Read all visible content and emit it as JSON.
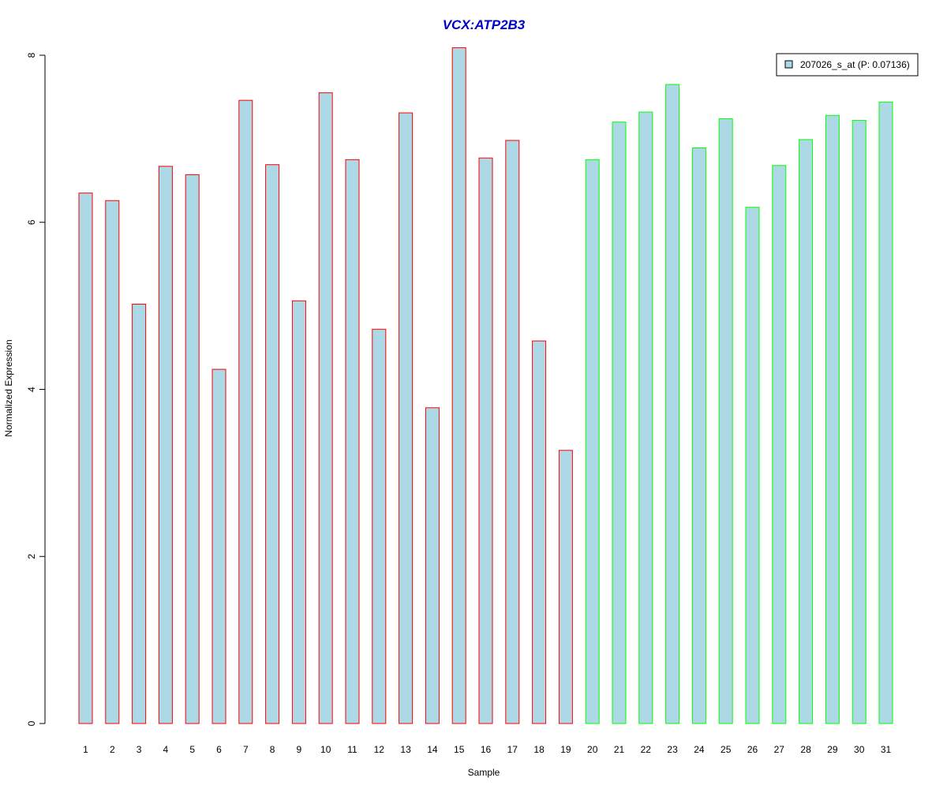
{
  "chart_data": {
    "type": "bar",
    "title": "VCX:ATP2B3",
    "xlabel": "Sample",
    "ylabel": "Normalized Expression",
    "ylim": [
      0,
      8.1
    ],
    "y_ticks": [
      0,
      2,
      4,
      6,
      8
    ],
    "grid": false,
    "legend": {
      "label": "207026_s_at (P: 0.07136)",
      "position": "top-right"
    },
    "categories": [
      "1",
      "2",
      "3",
      "4",
      "5",
      "6",
      "7",
      "8",
      "9",
      "10",
      "11",
      "12",
      "13",
      "14",
      "15",
      "16",
      "17",
      "18",
      "19",
      "20",
      "21",
      "22",
      "23",
      "24",
      "25",
      "26",
      "27",
      "28",
      "29",
      "30",
      "31"
    ],
    "values": [
      6.35,
      6.26,
      5.02,
      6.67,
      6.57,
      4.24,
      7.46,
      6.69,
      5.06,
      7.55,
      6.75,
      4.72,
      7.31,
      3.78,
      8.09,
      6.77,
      6.98,
      4.58,
      3.27,
      6.75,
      7.2,
      7.32,
      7.65,
      6.89,
      7.24,
      6.18,
      6.68,
      6.99,
      7.28,
      7.22,
      7.44
    ],
    "groups": [
      "red",
      "red",
      "red",
      "red",
      "red",
      "red",
      "red",
      "red",
      "red",
      "red",
      "red",
      "red",
      "red",
      "red",
      "red",
      "red",
      "red",
      "red",
      "red",
      "green",
      "green",
      "green",
      "green",
      "green",
      "green",
      "green",
      "green",
      "green",
      "green",
      "green",
      "green"
    ],
    "colors": {
      "bar_fill": "#add8e6",
      "group1_border": "#ff0000",
      "group2_border": "#00ff00",
      "title": "#0000cc",
      "axis": "#000000"
    }
  }
}
